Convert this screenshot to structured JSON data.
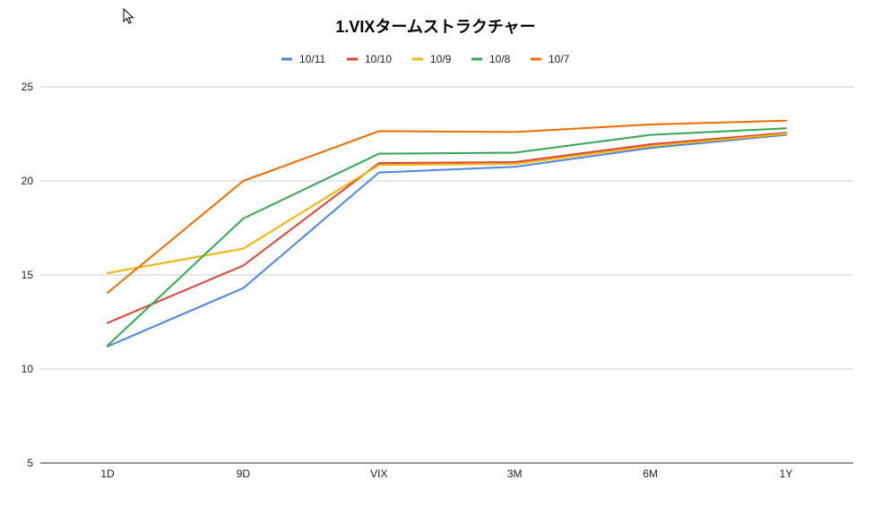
{
  "chart_data": {
    "type": "line",
    "title": "1.VIXタームストラクチャー",
    "xlabel": "",
    "ylabel": "",
    "categories": [
      "1D",
      "9D",
      "VIX",
      "3M",
      "6M",
      "1Y"
    ],
    "ylim": [
      5,
      25
    ],
    "yticks": [
      5,
      10,
      15,
      20,
      25
    ],
    "grid": true,
    "legend_position": "top",
    "series": [
      {
        "name": "10/11",
        "color": "#4a86e8",
        "values": [
          11.2,
          14.3,
          20.45,
          20.75,
          21.75,
          22.45
        ]
      },
      {
        "name": "10/10",
        "color": "#db4437",
        "values": [
          12.45,
          15.5,
          20.95,
          21.0,
          21.95,
          22.55
        ]
      },
      {
        "name": "10/9",
        "color": "#f4b400",
        "values": [
          15.1,
          16.4,
          20.85,
          20.9,
          21.85,
          22.5
        ]
      },
      {
        "name": "10/8",
        "color": "#34a853",
        "values": [
          11.25,
          18.0,
          21.45,
          21.5,
          22.45,
          22.8
        ]
      },
      {
        "name": "10/7",
        "color": "#ef6c00",
        "values": [
          14.05,
          20.0,
          22.65,
          22.6,
          23.0,
          23.2
        ]
      }
    ]
  }
}
